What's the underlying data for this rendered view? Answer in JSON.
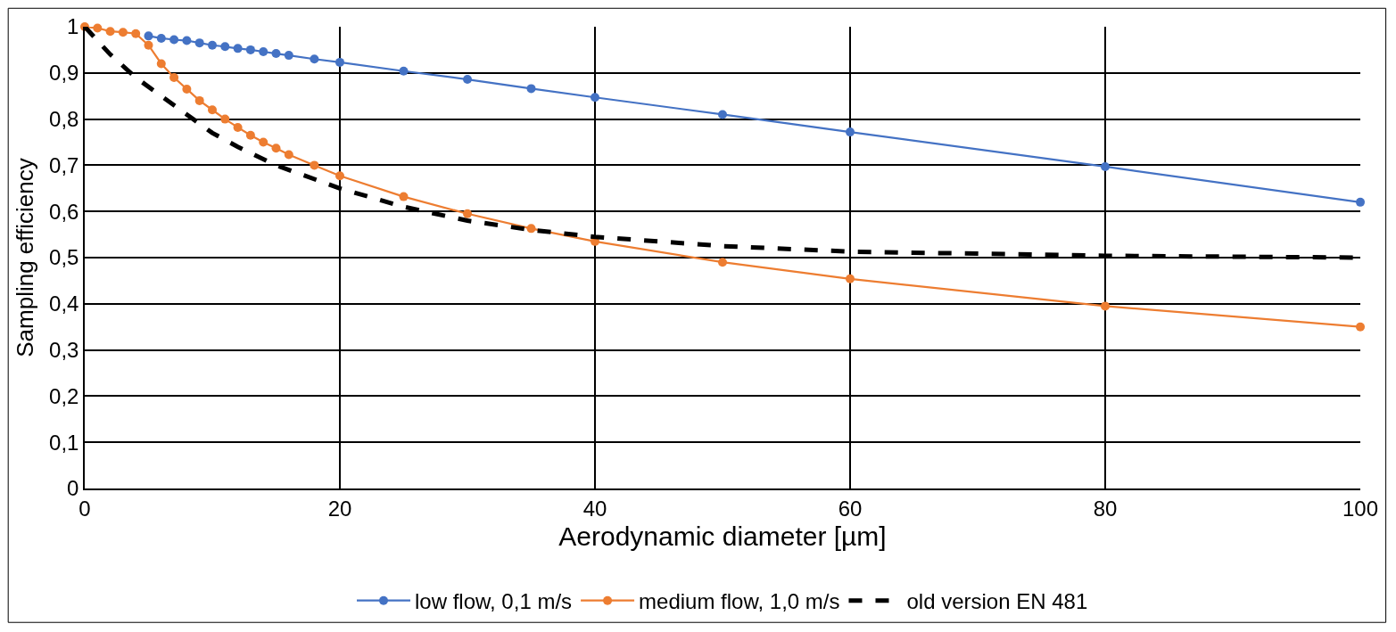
{
  "chart_data": {
    "type": "line",
    "xlabel": "Aerodynamic diameter [µm]",
    "ylabel": "Sampling efficiency",
    "xlim": [
      0,
      100
    ],
    "xticks": [
      0,
      20,
      40,
      60,
      80,
      100
    ],
    "ylim": [
      0,
      1
    ],
    "yticks": [
      0,
      {
        "value": 0.1,
        "label": "0,1"
      },
      {
        "value": 0.2,
        "label": "0,2"
      },
      {
        "value": 0.3,
        "label": "0,3"
      },
      {
        "value": 0.4,
        "label": "0,4"
      },
      {
        "value": 0.5,
        "label": "0,5"
      },
      {
        "value": 0.6,
        "label": "0,6"
      },
      {
        "value": 0.7,
        "label": "0,7"
      },
      {
        "value": 0.8,
        "label": "0,8"
      },
      {
        "value": 0.9,
        "label": "0,9"
      },
      1
    ],
    "grid": true,
    "legend": "bottom",
    "series": [
      {
        "name": "low flow, 0,1 m/s",
        "color": "#4472c4",
        "marker": "circle",
        "line_style": "solid",
        "x": [
          5,
          6,
          7,
          8,
          9,
          10,
          11,
          12,
          13,
          14,
          15,
          16,
          18,
          20,
          25,
          30,
          35,
          40,
          50,
          60,
          80,
          100
        ],
        "values": [
          0.98,
          0.975,
          0.972,
          0.97,
          0.965,
          0.96,
          0.957,
          0.953,
          0.95,
          0.946,
          0.942,
          0.938,
          0.93,
          0.923,
          0.904,
          0.886,
          0.866,
          0.847,
          0.81,
          0.772,
          0.697,
          0.62
        ]
      },
      {
        "name": "medium flow, 1,0 m/s",
        "color": "#ed7d31",
        "marker": "circle",
        "line_style": "solid",
        "x": [
          0,
          1,
          2,
          3,
          4,
          5,
          6,
          7,
          8,
          9,
          10,
          11,
          12,
          13,
          14,
          15,
          16,
          18,
          20,
          25,
          30,
          35,
          40,
          50,
          60,
          80,
          100
        ],
        "values": [
          1.0,
          0.997,
          0.99,
          0.988,
          0.985,
          0.96,
          0.92,
          0.89,
          0.865,
          0.84,
          0.82,
          0.8,
          0.782,
          0.765,
          0.75,
          0.737,
          0.723,
          0.7,
          0.677,
          0.632,
          0.595,
          0.563,
          0.535,
          0.49,
          0.454,
          0.395,
          0.35
        ]
      },
      {
        "name": "old version EN 481",
        "color": "#000000",
        "marker": "none",
        "line_style": "dashed",
        "x": [
          0,
          2,
          4,
          6,
          8,
          10,
          12,
          15,
          20,
          25,
          30,
          35,
          40,
          50,
          60,
          80,
          100
        ],
        "values": [
          1.0,
          0.94,
          0.89,
          0.85,
          0.81,
          0.77,
          0.74,
          0.7,
          0.65,
          0.61,
          0.58,
          0.56,
          0.545,
          0.525,
          0.513,
          0.504,
          0.5
        ]
      }
    ]
  }
}
